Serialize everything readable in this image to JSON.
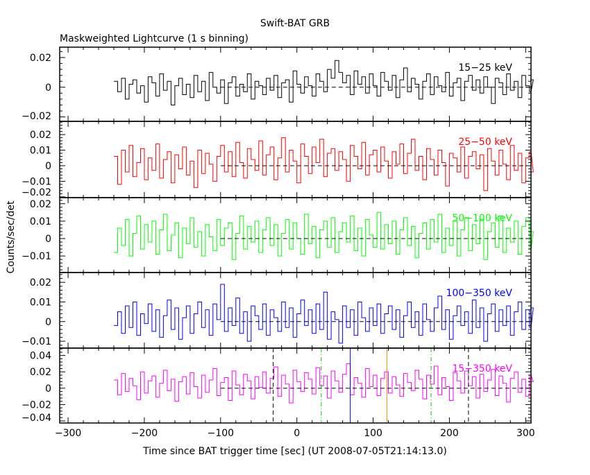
{
  "chart_data": {
    "type": "line",
    "title": "Swift-BAT GRB",
    "subtitle": "Maskweighted Lightcurve (1 s binning)",
    "xlabel": "Time since BAT trigger time [sec] (UT 2008-07-05T21:14:13.0)",
    "ylabel": "Counts/sec/det",
    "xlim": [
      -311,
      307
    ],
    "xticks": [
      -300,
      -200,
      -100,
      0,
      100,
      200,
      300
    ],
    "xtick_labels": [
      "−300",
      "−200",
      "−100",
      "0",
      "100",
      "200",
      "300"
    ],
    "x_start": -240,
    "x_step": 5,
    "zero_line_start": -100,
    "panels": [
      {
        "name": "15−25 keV",
        "color": "#000000",
        "ylim": [
          -0.023,
          0.027
        ],
        "yticks": [
          0.02,
          0,
          -0.02
        ],
        "ytick_labels": [
          "0.02",
          "0",
          "−0.02"
        ],
        "values": [
          0.004,
          -0.003,
          0.006,
          -0.008,
          0.002,
          0.005,
          -0.004,
          0.001,
          -0.01,
          0.007,
          0.003,
          -0.006,
          0.009,
          -0.002,
          0.004,
          -0.012,
          0.001,
          0.006,
          -0.005,
          0.002,
          -0.007,
          0.008,
          -0.003,
          0.004,
          -0.009,
          0.01,
          0.0,
          -0.004,
          0.005,
          -0.011,
          0.003,
          0.007,
          -0.006,
          0.002,
          -0.003,
          0.009,
          -0.008,
          0.004,
          0.001,
          -0.005,
          0.006,
          -0.002,
          0.008,
          -0.007,
          0.003,
          0.005,
          -0.01,
          0.011,
          0.002,
          -0.004,
          0.007,
          0.001,
          -0.006,
          0.009,
          0.004,
          -0.003,
          0.012,
          0.006,
          0.018,
          0.01,
          0.003,
          0.008,
          -0.005,
          0.011,
          0.002,
          0.007,
          -0.004,
          0.009,
          0.001,
          -0.006,
          0.01,
          0.004,
          -0.002,
          0.008,
          -0.007,
          0.005,
          0.013,
          -0.003,
          0.006,
          0.002,
          -0.008,
          0.004,
          0.009,
          -0.005,
          0.007,
          0.001,
          -0.003,
          0.01,
          -0.006,
          0.003,
          0.006,
          -0.009,
          0.004,
          0.008,
          -0.002,
          0.005,
          -0.004,
          0.007,
          0.0,
          -0.011,
          0.006,
          0.003,
          -0.005,
          0.009,
          -0.002,
          0.004,
          -0.007,
          0.008,
          0.001,
          -0.003,
          0.005
        ]
      },
      {
        "name": "25−50 keV",
        "color": "#ff0000",
        "ylim": [
          -0.0205,
          0.0285
        ],
        "yticks": [
          0.02,
          0.01,
          0,
          -0.01,
          -0.02
        ],
        "ytick_labels": [
          "0.02",
          "0.01",
          "0",
          "−0.01",
          "−0.02"
        ],
        "values": [
          0.006,
          -0.012,
          0.01,
          -0.004,
          0.013,
          -0.007,
          0.002,
          0.011,
          -0.009,
          0.005,
          -0.003,
          0.014,
          -0.008,
          0.004,
          0.009,
          -0.011,
          0.007,
          -0.002,
          0.012,
          -0.006,
          0.003,
          -0.014,
          0.01,
          -0.005,
          0.008,
          0.001,
          -0.01,
          0.006,
          0.013,
          -0.004,
          0.009,
          -0.007,
          0.015,
          0.002,
          -0.008,
          0.011,
          0.004,
          -0.003,
          0.016,
          -0.006,
          0.007,
          0.012,
          -0.009,
          0.005,
          0.018,
          -0.004,
          0.01,
          0.003,
          -0.011,
          0.014,
          0.006,
          -0.005,
          0.012,
          0.002,
          0.017,
          -0.007,
          0.008,
          0.011,
          -0.003,
          0.009,
          0.004,
          -0.01,
          0.013,
          0.006,
          -0.002,
          0.015,
          -0.006,
          0.007,
          0.01,
          -0.004,
          0.012,
          0.003,
          -0.008,
          0.009,
          0.001,
          0.014,
          -0.005,
          0.008,
          0.017,
          -0.003,
          0.006,
          -0.009,
          0.011,
          0.004,
          -0.006,
          0.01,
          0.002,
          -0.013,
          0.008,
          0.005,
          -0.004,
          0.012,
          -0.008,
          0.006,
          0.009,
          -0.002,
          0.007,
          -0.016,
          0.011,
          0.003,
          -0.006,
          0.01,
          0.001,
          -0.009,
          0.013,
          -0.003,
          0.008,
          -0.011,
          0.005,
          0.009,
          -0.004
        ]
      },
      {
        "name": "50−100 keV",
        "color": "#00ff00",
        "ylim": [
          -0.0195,
          0.0235
        ],
        "yticks": [
          0.02,
          0.01,
          0,
          -0.01
        ],
        "ytick_labels": [
          "0.02",
          "0.01",
          "0",
          "−0.01"
        ],
        "values": [
          -0.008,
          0.006,
          -0.004,
          0.011,
          -0.01,
          0.003,
          0.013,
          -0.006,
          0.008,
          -0.002,
          0.01,
          -0.009,
          0.005,
          0.014,
          -0.007,
          0.002,
          0.009,
          -0.011,
          0.006,
          -0.003,
          0.012,
          -0.005,
          0.004,
          -0.01,
          0.008,
          0.001,
          -0.007,
          0.011,
          -0.004,
          0.006,
          0.009,
          -0.012,
          0.003,
          0.013,
          -0.006,
          0.007,
          -0.002,
          0.01,
          -0.008,
          0.005,
          0.012,
          -0.004,
          0.008,
          -0.01,
          0.003,
          0.011,
          -0.006,
          0.009,
          0.0,
          -0.009,
          0.014,
          -0.003,
          0.007,
          -0.011,
          0.005,
          0.01,
          -0.005,
          0.012,
          -0.008,
          0.004,
          0.009,
          -0.002,
          0.013,
          -0.007,
          0.006,
          -0.01,
          0.011,
          0.002,
          -0.005,
          0.015,
          -0.006,
          0.008,
          -0.003,
          0.01,
          -0.009,
          0.005,
          0.012,
          -0.004,
          0.007,
          -0.011,
          0.003,
          0.009,
          -0.006,
          0.011,
          -0.002,
          0.014,
          -0.008,
          0.006,
          -0.004,
          0.01,
          -0.01,
          0.005,
          0.012,
          -0.007,
          0.008,
          -0.003,
          0.011,
          -0.012,
          0.004,
          0.009,
          -0.005,
          0.013,
          -0.008,
          0.006,
          -0.002,
          0.01,
          -0.009,
          0.007,
          0.012,
          -0.006,
          0.004
        ]
      },
      {
        "name": "100−350 keV",
        "color": "#0000ff",
        "ylim": [
          -0.0135,
          0.025
        ],
        "yticks": [
          0.02,
          0.01,
          0,
          -0.01
        ],
        "ytick_labels": [
          "0.02",
          "0.01",
          "0",
          "−0.01"
        ],
        "values": [
          -0.002,
          0.005,
          -0.006,
          0.008,
          -0.003,
          0.01,
          -0.007,
          0.004,
          -0.001,
          0.009,
          -0.005,
          0.006,
          -0.008,
          0.003,
          0.011,
          -0.004,
          0.007,
          -0.009,
          0.002,
          0.008,
          -0.006,
          0.004,
          0.01,
          -0.003,
          0.006,
          -0.007,
          0.009,
          0.001,
          0.019,
          -0.005,
          0.007,
          -0.002,
          0.012,
          -0.006,
          0.005,
          -0.01,
          0.008,
          0.003,
          -0.004,
          0.009,
          -0.007,
          0.006,
          0.002,
          -0.005,
          0.01,
          -0.003,
          0.007,
          -0.008,
          0.004,
          0.011,
          -0.002,
          0.006,
          -0.006,
          0.009,
          -0.004,
          0.015,
          -0.009,
          0.005,
          0.001,
          -0.011,
          0.008,
          -0.003,
          0.006,
          -0.007,
          0.01,
          0.002,
          -0.005,
          0.007,
          -0.002,
          0.009,
          -0.006,
          0.004,
          0.008,
          -0.004,
          0.006,
          -0.008,
          0.003,
          0.01,
          -0.003,
          0.005,
          -0.007,
          0.009,
          0.001,
          -0.005,
          0.007,
          0.013,
          -0.004,
          0.006,
          -0.009,
          0.003,
          0.008,
          -0.002,
          0.005,
          -0.006,
          0.011,
          -0.003,
          0.007,
          -0.01,
          0.004,
          0.009,
          -0.005,
          0.006,
          -0.002,
          0.008,
          -0.007,
          0.005,
          0.01,
          -0.004,
          0.006,
          -0.003,
          0.007
        ]
      },
      {
        "name": "15−350 keV",
        "color": "#ff00ff",
        "ylim": [
          -0.0425,
          0.049
        ],
        "yticks": [
          0.04,
          0.02,
          0,
          -0.02,
          -0.04
        ],
        "ytick_labels": [
          "0.04",
          "0.02",
          "0",
          "−0.02",
          "−0.04"
        ],
        "values": [
          0.01,
          -0.008,
          0.018,
          -0.004,
          0.012,
          0.003,
          -0.014,
          0.02,
          -0.006,
          0.009,
          0.015,
          -0.011,
          0.006,
          0.022,
          -0.003,
          0.011,
          -0.016,
          0.008,
          0.014,
          -0.007,
          0.019,
          0.002,
          -0.012,
          0.016,
          -0.005,
          0.01,
          0.024,
          -0.009,
          0.007,
          0.013,
          -0.015,
          0.021,
          0.004,
          -0.008,
          0.017,
          0.009,
          -0.013,
          0.014,
          0.001,
          0.02,
          -0.006,
          0.012,
          0.026,
          -0.01,
          0.016,
          0.005,
          -0.018,
          0.022,
          0.008,
          -0.004,
          0.019,
          0.011,
          -0.007,
          0.025,
          0.003,
          0.015,
          -0.012,
          0.021,
          0.009,
          -0.005,
          0.017,
          0.03,
          -0.008,
          0.013,
          0.006,
          -0.011,
          0.024,
          0.002,
          0.016,
          -0.009,
          0.012,
          0.02,
          -0.006,
          0.014,
          0.004,
          -0.01,
          0.018,
          0.007,
          -0.003,
          0.022,
          0.011,
          -0.013,
          0.016,
          0.005,
          0.027,
          -0.008,
          0.013,
          0.002,
          -0.015,
          0.019,
          0.009,
          -0.006,
          0.021,
          0.003,
          0.014,
          -0.012,
          0.017,
          -0.004,
          0.01,
          0.023,
          -0.009,
          0.015,
          0.006,
          -0.017,
          0.012,
          0.02,
          -0.005,
          0.011,
          -0.01,
          0.016,
          0.008
        ],
        "vlines": [
          {
            "x": -31,
            "color": "#000000",
            "style": "dashed"
          },
          {
            "x": 32,
            "color": "#00cc00",
            "style": "dashdot"
          },
          {
            "x": 70,
            "color": "#0000ff",
            "style": "solid"
          },
          {
            "x": 118,
            "color": "#ff8000",
            "style": "solid"
          },
          {
            "x": 176,
            "color": "#00cc00",
            "style": "dashdot"
          },
          {
            "x": 225,
            "color": "#000000",
            "style": "dashed"
          }
        ]
      }
    ]
  }
}
